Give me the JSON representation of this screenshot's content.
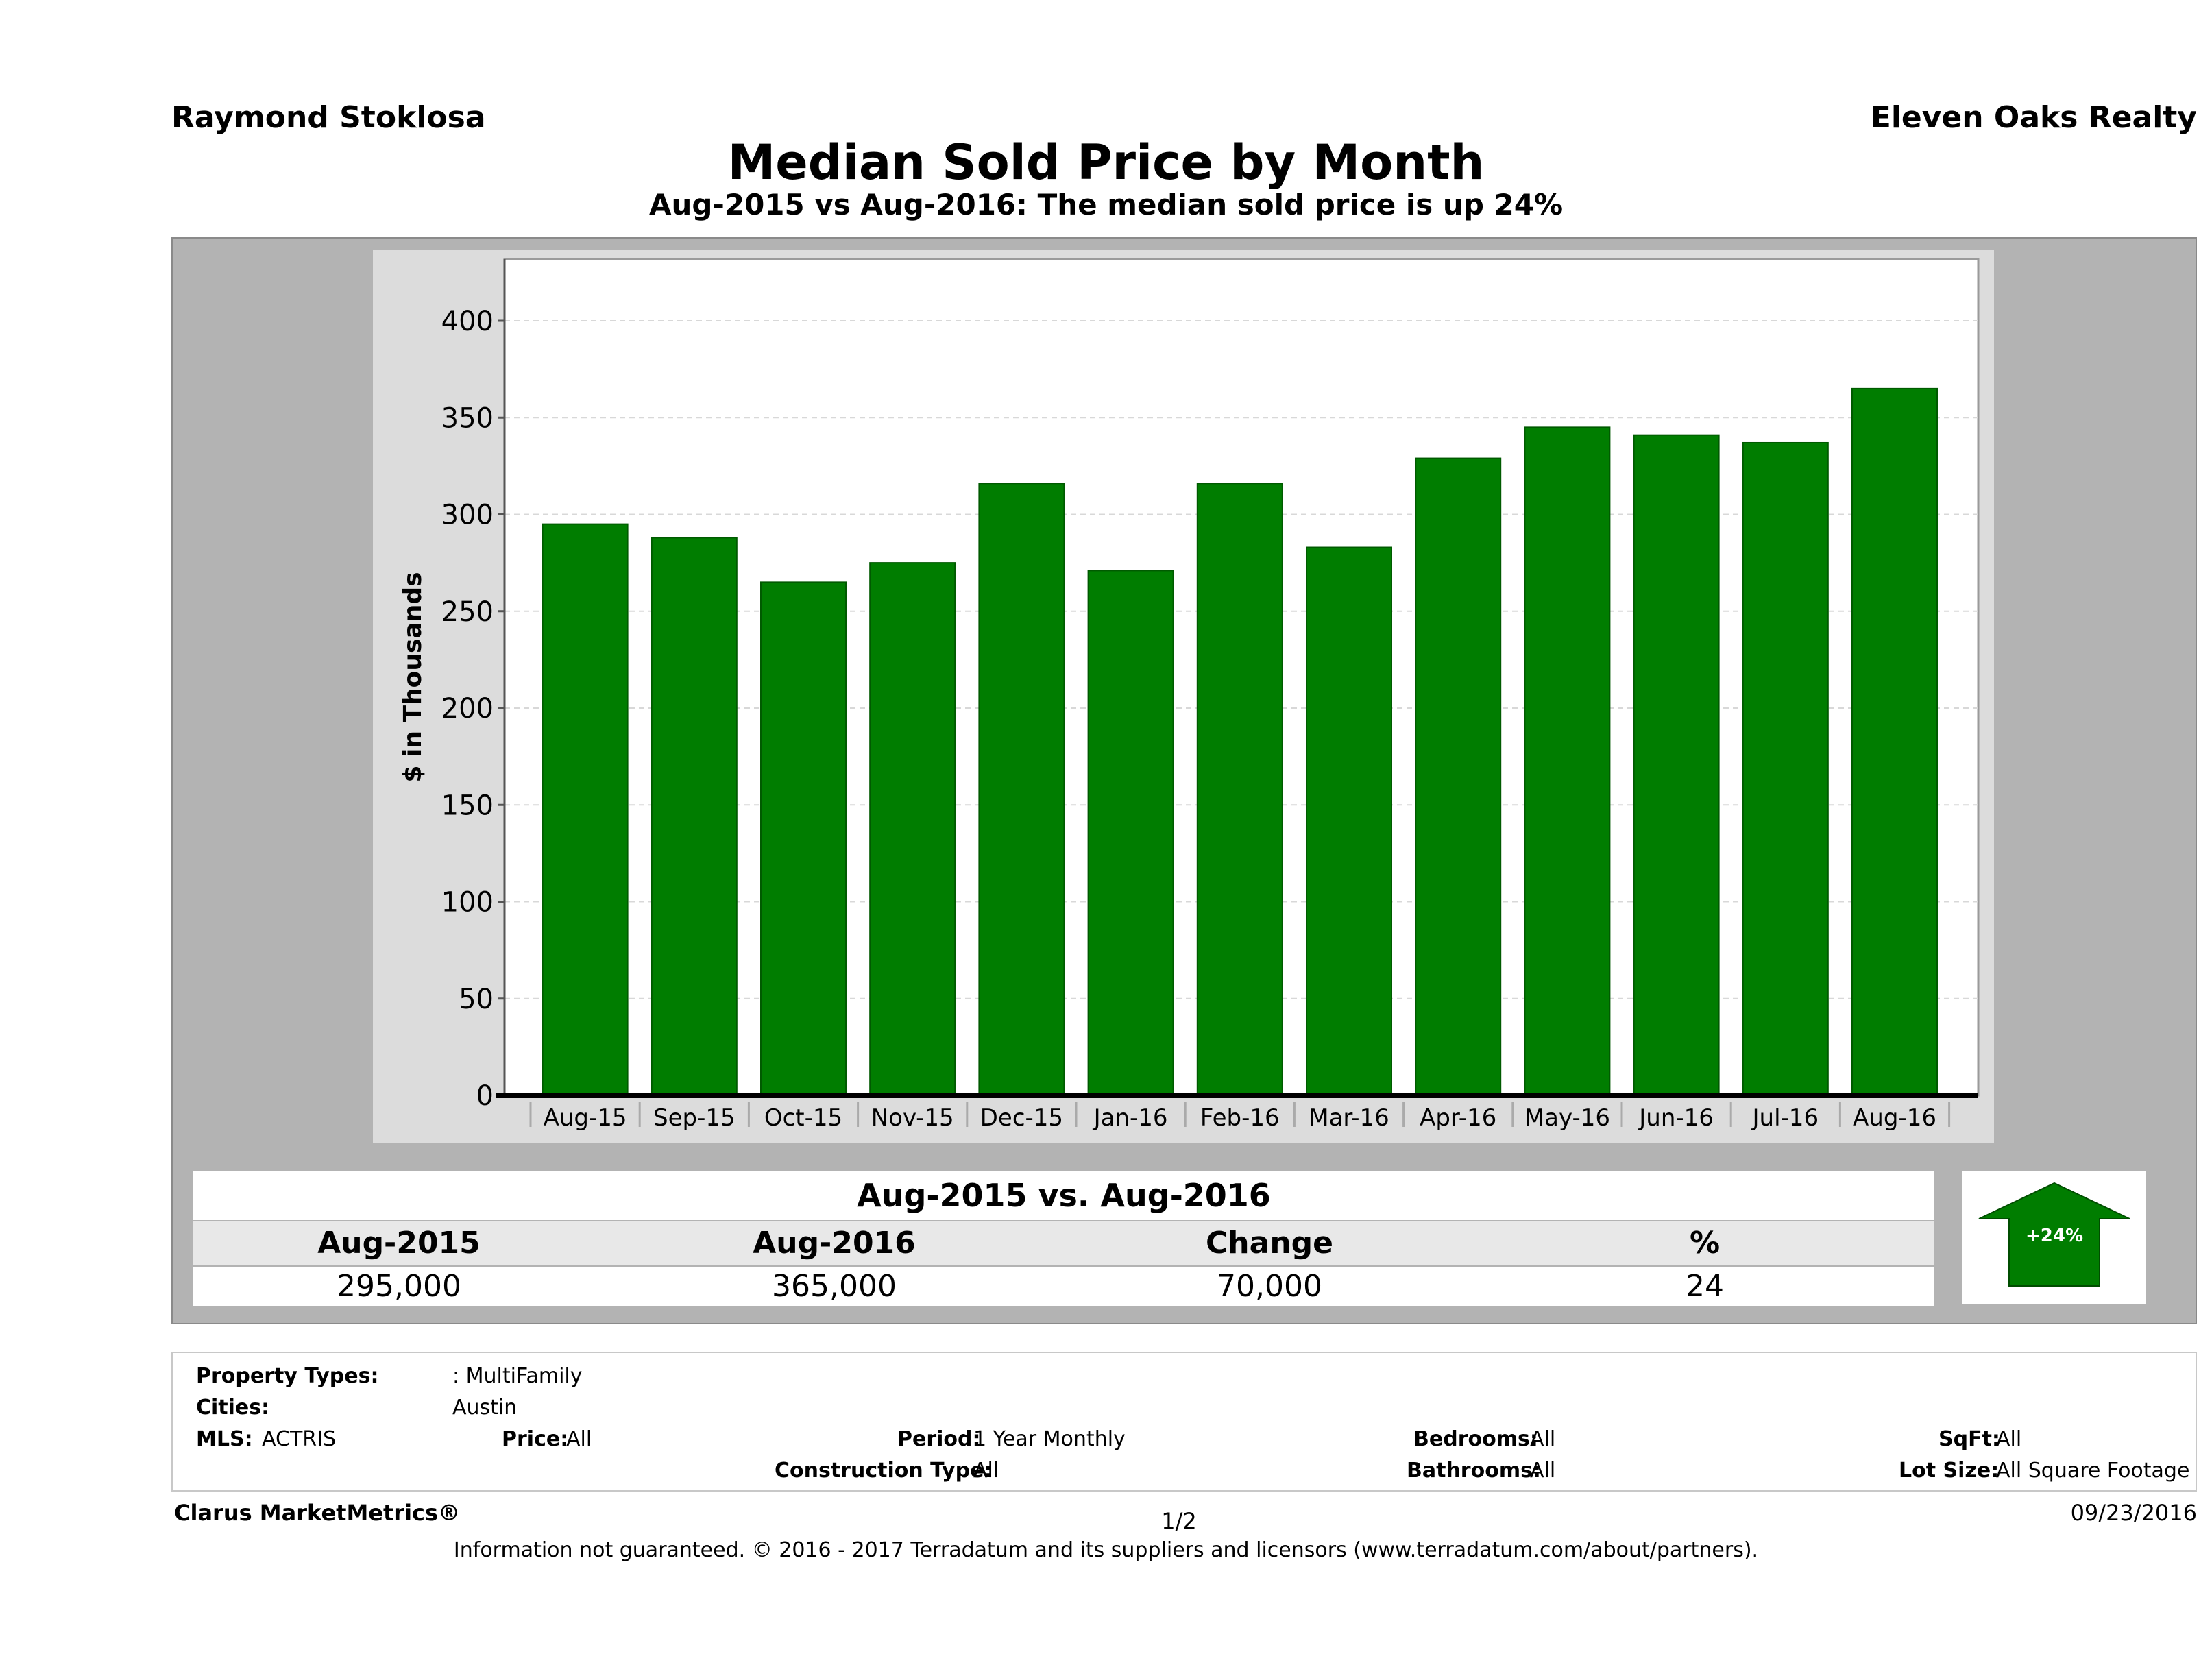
{
  "header": {
    "agent": "Raymond Stoklosa",
    "brokerage": "Eleven Oaks Realty",
    "title": "Median Sold Price by Month",
    "subtitle": "Aug-2015 vs Aug-2016: The median sold price is up 24%"
  },
  "chart_data": {
    "type": "bar",
    "ylabel": "$ in Thousands",
    "ylim": [
      0,
      440
    ],
    "yticks": [
      0,
      50,
      100,
      150,
      200,
      250,
      300,
      350,
      400
    ],
    "grid": true,
    "bar_color": "#007d00",
    "categories": [
      "Aug-15",
      "Sep-15",
      "Oct-15",
      "Nov-15",
      "Dec-15",
      "Jan-16",
      "Feb-16",
      "Mar-16",
      "Apr-16",
      "May-16",
      "Jun-16",
      "Jul-16",
      "Aug-16"
    ],
    "values": [
      295,
      288,
      265,
      275,
      316,
      271,
      316,
      283,
      329,
      345,
      341,
      337,
      365
    ]
  },
  "comparison": {
    "title": "Aug-2015 vs. Aug-2016",
    "headers": [
      "Aug-2015",
      "Aug-2016",
      "Change",
      "%"
    ],
    "values": [
      "295,000",
      "365,000",
      "70,000",
      "24"
    ],
    "badge": "+24%",
    "badge_color": "#007d00"
  },
  "filters": {
    "property_types_label": "Property Types:",
    "property_types_value": ": MultiFamily",
    "cities_label": "Cities:",
    "cities_value": "Austin",
    "mls_label": "MLS:",
    "mls_value": "ACTRIS",
    "price_label": "Price:",
    "price_value": "All",
    "period_label": "Period:",
    "period_value": "1 Year Monthly",
    "construction_label": "Construction Type:",
    "construction_value": "All",
    "bedrooms_label": "Bedrooms:",
    "bedrooms_value": "All",
    "bathrooms_label": "Bathrooms:",
    "bathrooms_value": "All",
    "sqft_label": "SqFt:",
    "sqft_value": "All",
    "lotsize_label": "Lot Size:",
    "lotsize_value": "All Square Footage"
  },
  "footer": {
    "brand": "Clarus MarketMetrics®",
    "page": "1/2",
    "date": "09/23/2016",
    "disclaimer": "Information not guaranteed. © 2016 - 2017 Terradatum and its suppliers and licensors (www.terradatum.com/about/partners)."
  }
}
